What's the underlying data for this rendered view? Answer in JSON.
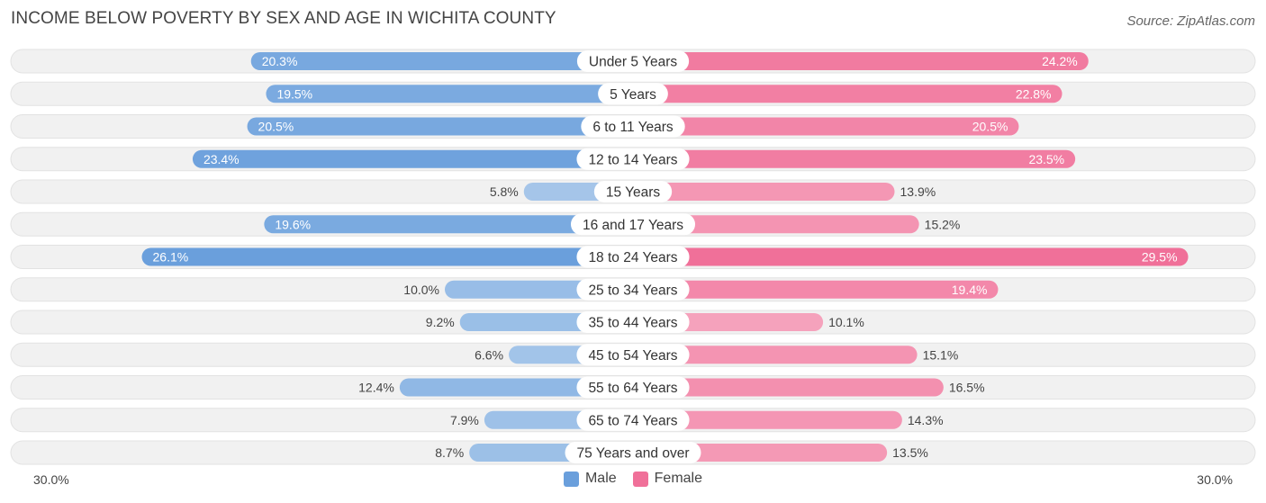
{
  "title": "INCOME BELOW POVERTY BY SEX AND AGE IN WICHITA COUNTY",
  "source": "Source: ZipAtlas.com",
  "colors": {
    "male_strong": "#6a9fdc",
    "male_light": "#a7c7ea",
    "female_strong": "#f07099",
    "female_light": "#f6a8c0",
    "track": "#f1f1f1"
  },
  "chart_data": {
    "type": "bar",
    "orientation": "horizontal-diverging",
    "title": "INCOME BELOW POVERTY BY SEX AND AGE IN WICHITA COUNTY",
    "categories": [
      "Under 5 Years",
      "5 Years",
      "6 to 11 Years",
      "12 to 14 Years",
      "15 Years",
      "16 and 17 Years",
      "18 to 24 Years",
      "25 to 34 Years",
      "35 to 44 Years",
      "45 to 54 Years",
      "55 to 64 Years",
      "65 to 74 Years",
      "75 Years and over"
    ],
    "series": [
      {
        "name": "Male",
        "values": [
          20.3,
          19.5,
          20.5,
          23.4,
          5.8,
          19.6,
          26.1,
          10.0,
          9.2,
          6.6,
          12.4,
          7.9,
          8.7
        ]
      },
      {
        "name": "Female",
        "values": [
          24.2,
          22.8,
          20.5,
          23.5,
          13.9,
          15.2,
          29.5,
          19.4,
          10.1,
          15.1,
          16.5,
          14.3,
          13.5
        ]
      }
    ],
    "xlim": [
      0,
      30
    ],
    "axis_left_label": "30.0%",
    "axis_right_label": "30.0%",
    "legend": [
      "Male",
      "Female"
    ],
    "legend_position": "bottom-center",
    "unit": "%"
  }
}
